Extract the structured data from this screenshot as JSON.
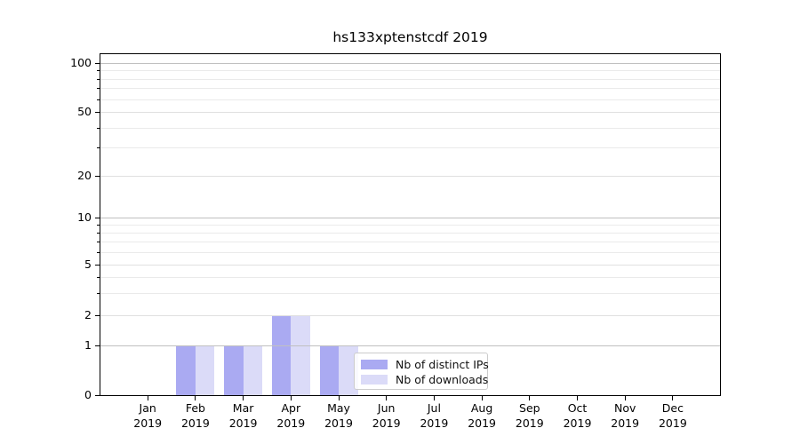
{
  "chart_data": {
    "type": "bar",
    "title": "hs133xptenstcdf 2019",
    "x": {
      "months": [
        "Jan",
        "Feb",
        "Mar",
        "Apr",
        "May",
        "Jun",
        "Jul",
        "Aug",
        "Sep",
        "Oct",
        "Nov",
        "Dec"
      ],
      "year": "2019"
    },
    "series": [
      {
        "name": "Nb of distinct IPs",
        "color": "#aaaaf2",
        "values": [
          0,
          1,
          1,
          2,
          1,
          0,
          0,
          0,
          0,
          0,
          0,
          0
        ]
      },
      {
        "name": "Nb of downloads",
        "color": "#dbdbf8",
        "values": [
          0,
          1,
          1,
          2,
          1,
          0,
          0,
          0,
          0,
          0,
          0,
          0
        ]
      }
    ],
    "y_axis": {
      "scale": "symlog",
      "tick_values": [
        0,
        1,
        2,
        5,
        10,
        20,
        50,
        100
      ],
      "major_values": [
        1,
        10,
        100
      ],
      "minor_values": [
        3,
        4,
        6,
        7,
        8,
        9,
        30,
        40,
        60,
        70,
        80,
        90
      ],
      "ylim": [
        0,
        115
      ]
    },
    "grid": "horizontal",
    "legend": {
      "position": "inside-lower-right",
      "entries": [
        "Nb of distinct IPs",
        "Nb of downloads"
      ]
    }
  }
}
